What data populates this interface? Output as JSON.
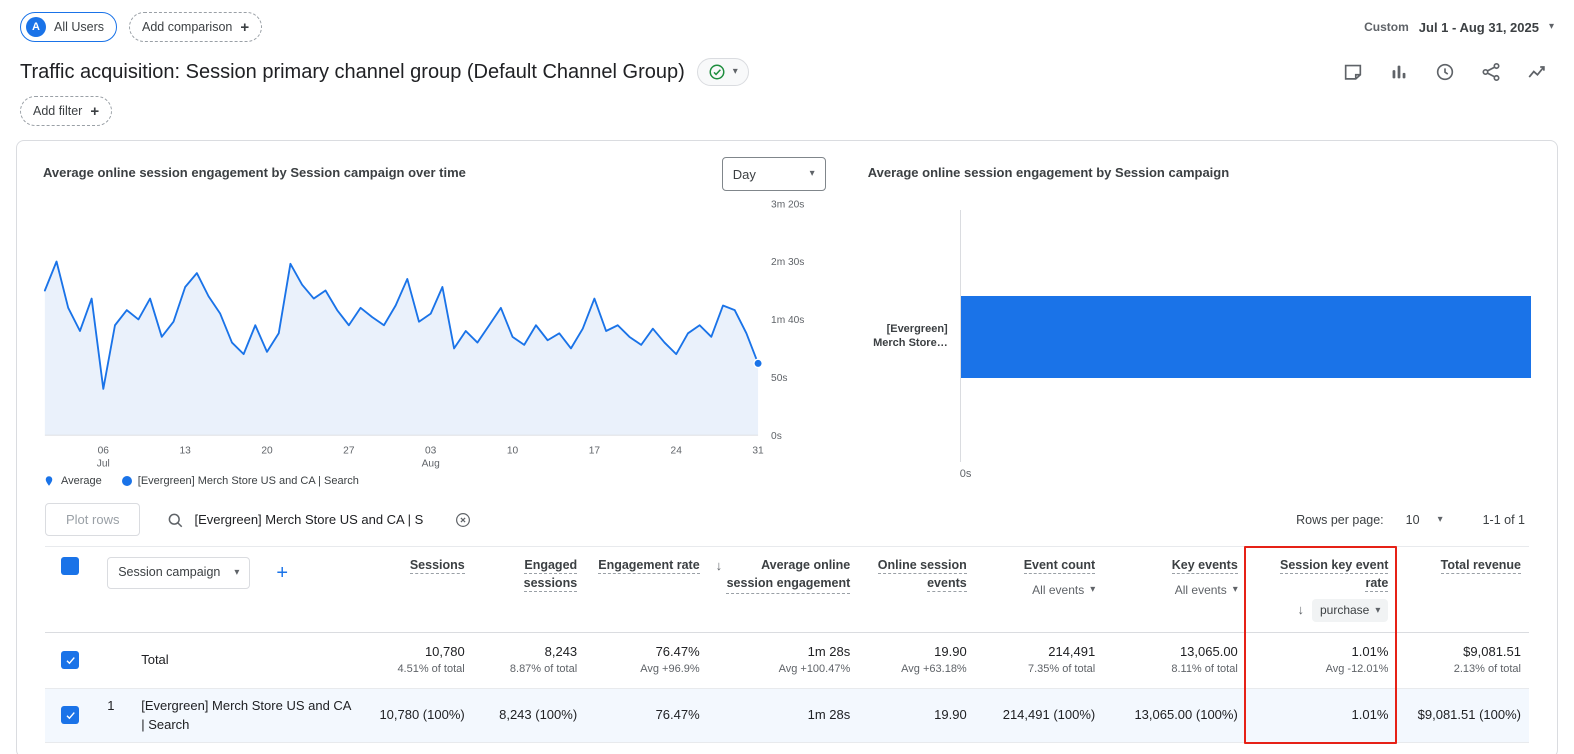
{
  "topbar": {
    "all_users": "All Users",
    "add_comparison": "Add comparison",
    "date_label": "Custom",
    "date_range": "Jul 1 - Aug 31, 2025"
  },
  "header": {
    "title": "Traffic acquisition: Session primary channel group (Default Channel Group)",
    "add_filter": "Add filter"
  },
  "line_chart": {
    "title": "Average online session engagement by Session campaign over time",
    "interval_label": "Day",
    "legend": [
      {
        "label": "Average"
      },
      {
        "label": "[Evergreen] Merch Store US and CA | Search"
      }
    ]
  },
  "bar_chart": {
    "title": "Average online session engagement by Session campaign",
    "category_line1": "[Evergreen]",
    "category_line2": "Merch Store…",
    "x_tick": "0s"
  },
  "chart_data": [
    {
      "type": "line",
      "title": "Average online session engagement by Session campaign over time",
      "x_start": "Jul 1, 2025",
      "x_end": "Aug 31, 2025",
      "ylim": [
        0,
        200
      ],
      "y_unit": "seconds",
      "y_ticks": [
        {
          "label": "0s",
          "value": 0
        },
        {
          "label": "50s",
          "value": 50
        },
        {
          "label": "1m 40s",
          "value": 100
        },
        {
          "label": "2m 30s",
          "value": 150
        },
        {
          "label": "3m 20s",
          "value": 200
        }
      ],
      "x_ticks": [
        {
          "label": "06",
          "sub": "Jul",
          "index": 5
        },
        {
          "label": "13",
          "index": 12
        },
        {
          "label": "20",
          "index": 19
        },
        {
          "label": "27",
          "index": 26
        },
        {
          "label": "03",
          "sub": "Aug",
          "index": 33
        },
        {
          "label": "10",
          "index": 40
        },
        {
          "label": "17",
          "index": 47
        },
        {
          "label": "24",
          "index": 54
        },
        {
          "label": "31",
          "index": 61
        }
      ],
      "series": [
        {
          "name": "[Evergreen] Merch Store US and CA | Search",
          "values": [
            125,
            150,
            110,
            90,
            118,
            40,
            95,
            108,
            100,
            118,
            85,
            98,
            128,
            140,
            120,
            105,
            80,
            70,
            95,
            72,
            88,
            148,
            130,
            118,
            125,
            108,
            95,
            110,
            102,
            95,
            112,
            135,
            98,
            105,
            128,
            75,
            90,
            80,
            95,
            110,
            85,
            78,
            95,
            82,
            88,
            75,
            92,
            118,
            90,
            95,
            85,
            78,
            92,
            80,
            70,
            88,
            95,
            85,
            112,
            108,
            88,
            62
          ]
        }
      ]
    },
    {
      "type": "bar",
      "title": "Average online session engagement by Session campaign",
      "orientation": "horizontal",
      "categories": [
        "[Evergreen] Merch Store US and CA | Search"
      ],
      "values": [
        88
      ],
      "value_unit": "seconds",
      "x_ticks": [
        "0s"
      ]
    }
  ],
  "table": {
    "toolbar": {
      "plot_rows": "Plot rows",
      "search_value": "[Evergreen] Merch Store US and CA | S",
      "rows_per_page_label": "Rows per page:",
      "rows_per_page_value": "10",
      "pagination": "1-1 of 1"
    },
    "dimension_selector": "Session campaign",
    "columns": [
      {
        "id": "sessions",
        "label": "Sessions"
      },
      {
        "id": "engaged-sessions",
        "label": "Engaged sessions"
      },
      {
        "id": "engagement-rate",
        "label": "Engagement rate"
      },
      {
        "id": "avg-online-session-engagement",
        "label": "Average online session engagement",
        "sort_arrow": "left"
      },
      {
        "id": "online-session-events",
        "label": "Online session events"
      },
      {
        "id": "event-count",
        "label": "Event count",
        "filter": "All events",
        "filter_style": "plain"
      },
      {
        "id": "key-events",
        "label": "Key events",
        "filter": "All events",
        "filter_style": "plain"
      },
      {
        "id": "session-key-event-rate",
        "label": "Session key event rate",
        "filter": "purchase",
        "filter_style": "pill",
        "sort_arrow": "filter-left",
        "highlighted": true
      },
      {
        "id": "total-revenue",
        "label": "Total revenue"
      }
    ],
    "total_row": {
      "label": "Total",
      "values": [
        {
          "main": "10,780",
          "sub": "4.51% of total"
        },
        {
          "main": "8,243",
          "sub": "8.87% of total"
        },
        {
          "main": "76.47%",
          "sub": "Avg +96.9%"
        },
        {
          "main": "1m 28s",
          "sub": "Avg +100.47%"
        },
        {
          "main": "19.90",
          "sub": "Avg +63.18%"
        },
        {
          "main": "214,491",
          "sub": "7.35% of total"
        },
        {
          "main": "13,065.00",
          "sub": "8.11% of total"
        },
        {
          "main": "1.01%",
          "sub": "Avg -12.01%"
        },
        {
          "main": "$9,081.51",
          "sub": "2.13% of total"
        }
      ]
    },
    "rows": [
      {
        "index": "1",
        "dimension": "[Evergreen] Merch Store US and CA | Search",
        "values": [
          "10,780 (100%)",
          "8,243 (100%)",
          "76.47%",
          "1m 28s",
          "19.90",
          "214,491 (100%)",
          "13,065.00 (100%)",
          "1.01%",
          "$9,081.51 (100%)"
        ]
      }
    ]
  },
  "colors": {
    "accent_blue": "#1a73e8",
    "area_fill": "#eaf1fb",
    "highlight_red": "#e62117",
    "text_primary": "#202124",
    "text_secondary": "#5f6368"
  }
}
